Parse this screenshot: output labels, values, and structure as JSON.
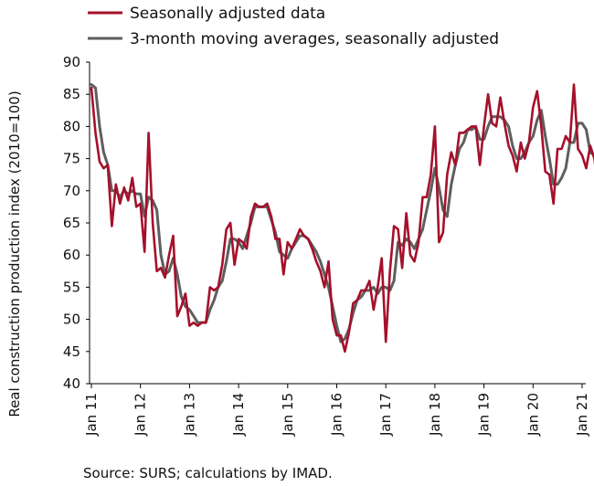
{
  "chart_data": {
    "type": "line",
    "title": "",
    "xlabel": "",
    "ylabel": "Real construction production index (2010=100)",
    "ylim": [
      40,
      90
    ],
    "yticks": [
      40,
      45,
      50,
      55,
      60,
      65,
      70,
      75,
      80,
      85,
      90
    ],
    "xticks": [
      "Jan 11",
      "Jan 12",
      "Jan 13",
      "Jan 14",
      "Jan 15",
      "Jan 16",
      "Jan 17",
      "Jan 18",
      "Jan 19",
      "Jan 20",
      "Jan 21"
    ],
    "grid": false,
    "legend_position": "top-left",
    "x_start": "2011-01",
    "x_frequency": "monthly",
    "series": [
      {
        "name": "Seasonally adjusted data",
        "color": "#a5102a",
        "values": [
          86,
          79,
          74.5,
          73.5,
          74,
          64.5,
          71,
          68,
          70.5,
          68.5,
          72,
          67.5,
          68,
          60.5,
          79,
          65,
          57.5,
          58,
          56.5,
          60,
          63,
          50.5,
          52,
          54,
          49,
          49.5,
          49,
          49.5,
          49.5,
          55,
          54.5,
          55,
          58.5,
          64,
          65,
          58.5,
          62.5,
          62,
          61,
          66,
          68,
          67.5,
          67.5,
          68,
          66,
          62.5,
          62.5,
          57,
          62,
          61,
          62.5,
          64,
          63,
          62.5,
          61,
          59,
          57.5,
          55,
          59,
          50,
          47.5,
          47.5,
          45,
          48,
          52.5,
          53,
          54.5,
          54.5,
          56,
          51.5,
          55,
          59.5,
          46.5,
          57.5,
          64.5,
          64,
          58,
          66.5,
          60,
          59,
          62,
          69,
          69,
          72.5,
          80,
          62,
          63.5,
          72.5,
          76,
          74,
          79,
          79,
          79.5,
          80,
          80,
          74,
          80,
          85,
          80.5,
          80,
          84.5,
          80.5,
          77,
          75.5,
          73,
          77.5,
          75,
          77.5,
          83,
          85.5,
          80,
          73,
          72.5,
          68,
          76.5,
          76.5,
          78.5,
          77.5,
          86.5,
          76.5,
          75.5,
          73.5,
          77,
          75,
          70,
          73,
          70.5,
          71,
          71.5
        ]
      },
      {
        "name": "3-month moving averages, seasonally adjusted",
        "color": "#5e5e5e",
        "values": [
          86.5,
          86,
          80,
          76,
          74,
          70,
          70,
          69,
          70,
          69.5,
          70,
          69.5,
          69.5,
          66,
          69,
          68.5,
          67,
          60,
          57,
          57.5,
          59.5,
          57,
          53.5,
          52,
          51.5,
          50.5,
          49.5,
          49.5,
          49.5,
          51.5,
          53,
          55,
          56,
          59,
          62.5,
          62.5,
          62,
          61,
          63,
          65,
          67.5,
          67.5,
          67.5,
          67.5,
          65.5,
          63.5,
          60.5,
          60,
          59.5,
          61,
          62,
          63,
          63,
          62.5,
          61.5,
          60.5,
          59,
          57,
          55,
          52,
          49,
          46.5,
          47,
          48.5,
          51,
          53,
          53.5,
          54.5,
          54.5,
          55,
          54,
          55,
          55,
          54.5,
          56,
          62,
          61.5,
          62.5,
          62,
          61,
          62.5,
          64,
          67,
          70,
          73.5,
          70.5,
          67,
          66,
          71,
          74,
          76.5,
          77.5,
          79.5,
          79.5,
          80,
          78,
          78,
          80,
          81.5,
          81.5,
          81.5,
          81,
          80,
          77,
          75,
          75,
          76,
          77.5,
          78.5,
          81,
          82.5,
          78.5,
          75,
          71,
          71,
          72,
          73.5,
          77.5,
          77.5,
          80.5,
          80.5,
          79.5,
          76,
          75.5,
          74.5,
          72.5,
          73,
          71.5,
          71.5,
          72
        ]
      }
    ]
  },
  "source_note": "Source: SURS; calculations by IMAD."
}
